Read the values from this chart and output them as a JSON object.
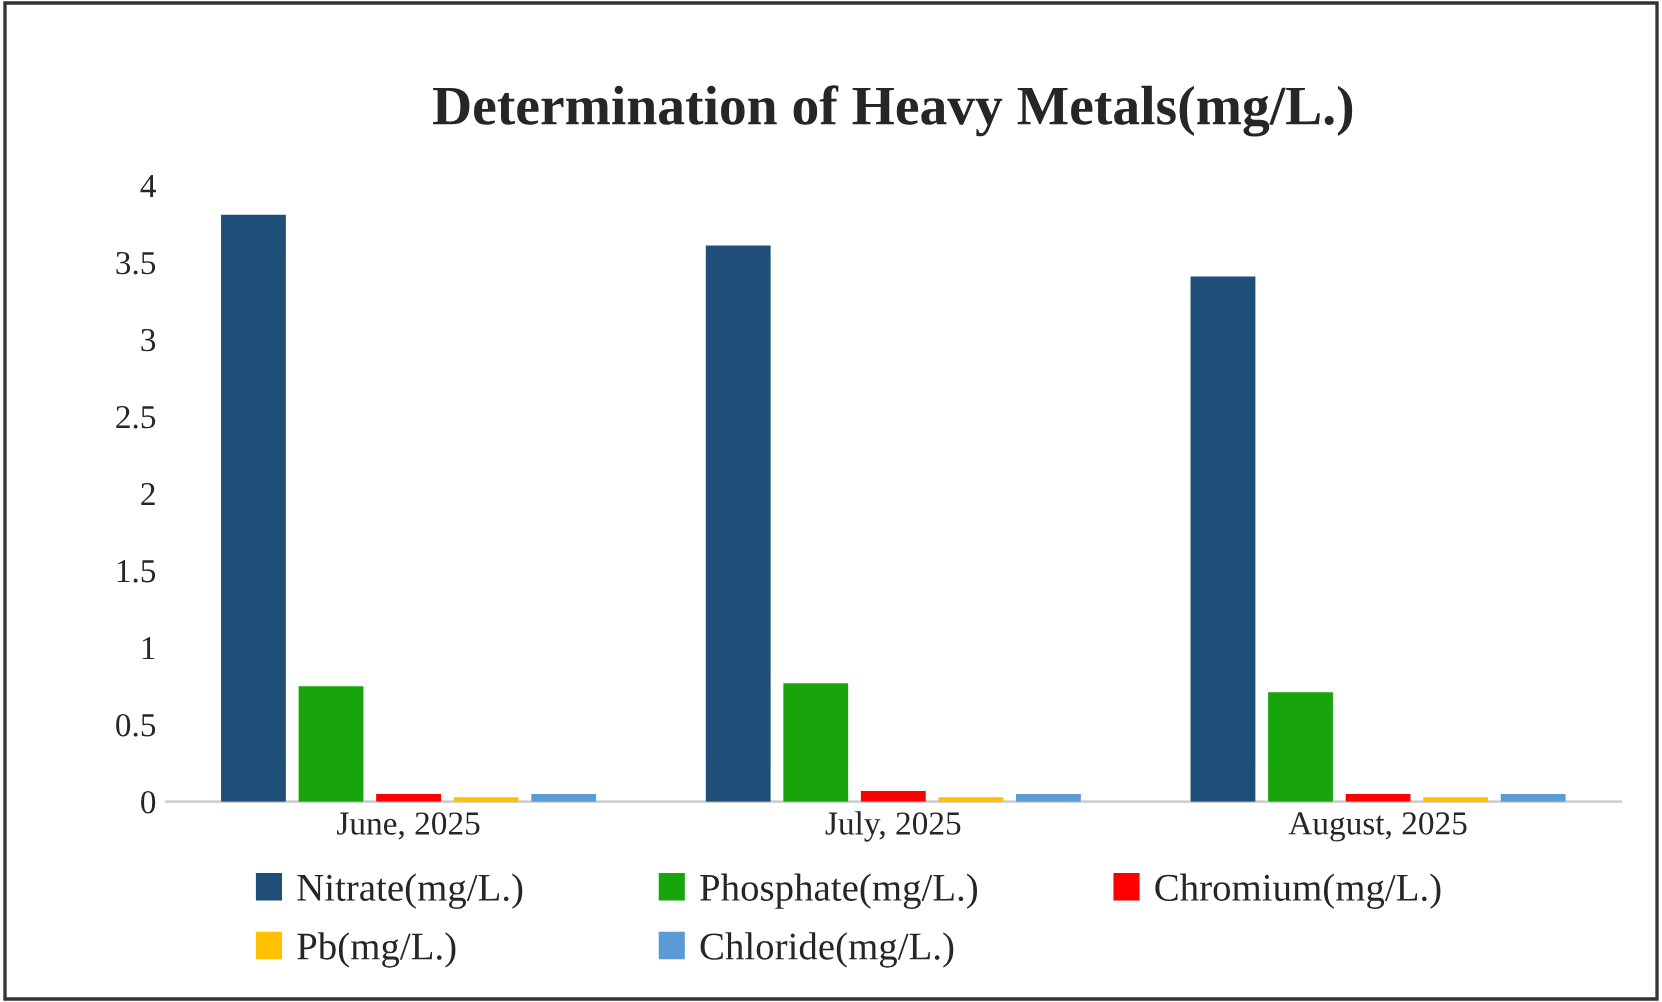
{
  "chart_data": {
    "type": "bar",
    "title": "Determination of Heavy Metals(mg/L.)",
    "categories": [
      "June, 2025",
      "July, 2025",
      "August, 2025"
    ],
    "series": [
      {
        "name": "Nitrate(mg/L.)",
        "color": "#1f4e79",
        "values": [
          3.8,
          3.6,
          3.4
        ]
      },
      {
        "name": "Phosphate(mg/L.)",
        "color": "#17a50b",
        "values": [
          0.74,
          0.76,
          0.7
        ]
      },
      {
        "name": "Chromium(mg/L.)",
        "color": "#ff0000",
        "values": [
          0.04,
          0.06,
          0.04
        ]
      },
      {
        "name": "Pb(mg/L.)",
        "color": "#ffc000",
        "values": [
          0.02,
          0.02,
          0.02
        ]
      },
      {
        "name": "Chloride(mg/L.)",
        "color": "#5b9bd5",
        "values": [
          0.04,
          0.04,
          0.04
        ]
      }
    ],
    "ylim": [
      0,
      4
    ],
    "yticks": [
      0,
      0.5,
      1,
      1.5,
      2,
      2.5,
      3,
      3.5,
      4
    ],
    "grid": false,
    "legend": "bottom"
  }
}
